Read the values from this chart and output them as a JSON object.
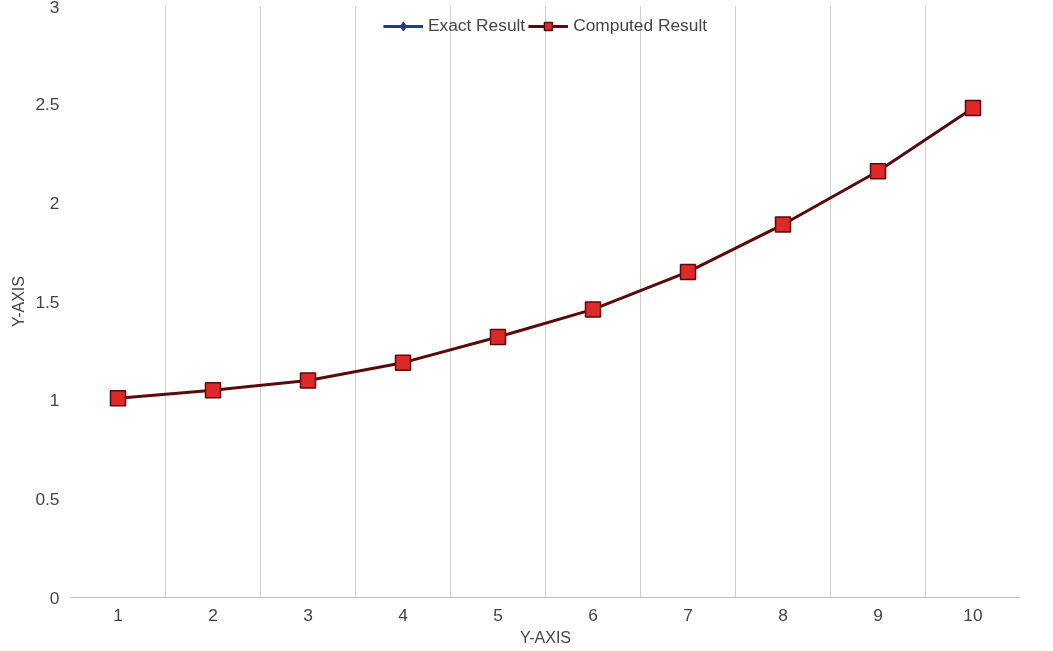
{
  "chart_data": {
    "type": "line",
    "xlabel": "Y-AXIS",
    "ylabel": "Y-AXIS",
    "categories": [
      "1",
      "2",
      "3",
      "4",
      "5",
      "6",
      "7",
      "8",
      "9",
      "10"
    ],
    "series": [
      {
        "name": "Exact Result",
        "color": "#1f3a93",
        "marker": "diamond",
        "values": [
          null,
          null,
          null,
          null,
          null,
          null,
          null,
          null,
          null,
          null
        ]
      },
      {
        "name": "Computed Result",
        "color": "#5a0a0a",
        "marker": "square",
        "values": [
          1.01,
          1.05,
          1.1,
          1.19,
          1.32,
          1.46,
          1.65,
          1.89,
          2.16,
          2.48
        ]
      }
    ],
    "ylim": [
      0,
      3
    ],
    "yticks": [
      0,
      0.5,
      1,
      1.5,
      2,
      2.5,
      3
    ],
    "grid": "x",
    "legend": "top"
  }
}
